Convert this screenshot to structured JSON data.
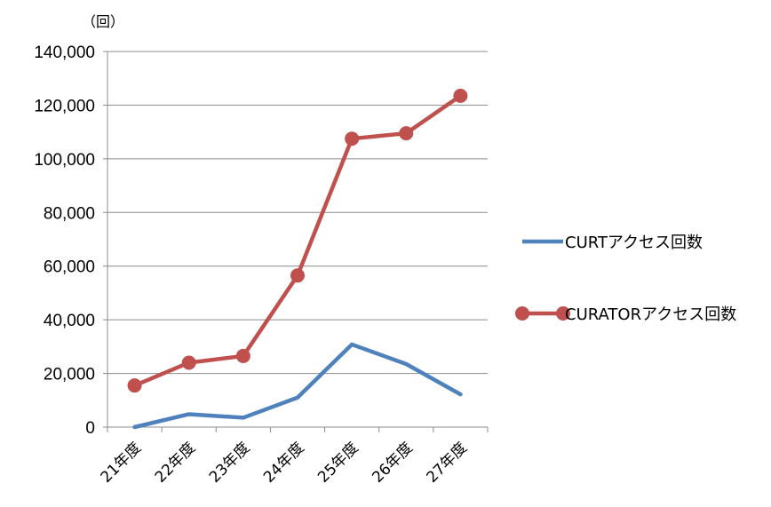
{
  "chart_data": {
    "type": "line",
    "title": "",
    "unit_label": "（回）",
    "xlabel": "",
    "ylabel": "",
    "categories": [
      "21年度",
      "22年度",
      "23年度",
      "24年度",
      "25年度",
      "26年度",
      "27年度"
    ],
    "y_ticks": [
      "0",
      "20,000",
      "40,000",
      "60,000",
      "80,000",
      "100,000",
      "120,000",
      "140,000"
    ],
    "ylim": [
      0,
      140000
    ],
    "grid": "horizontal",
    "legend_position": "right",
    "series": [
      {
        "name": "CURTアクセス回数",
        "color": "#4f81bd",
        "markers": false,
        "values": [
          0,
          4800,
          3500,
          11000,
          30800,
          23500,
          12200
        ]
      },
      {
        "name": "CURATORアクセス回数",
        "color": "#c0504d",
        "markers": true,
        "values": [
          15500,
          24000,
          26500,
          56500,
          107500,
          109500,
          123500
        ]
      }
    ]
  }
}
